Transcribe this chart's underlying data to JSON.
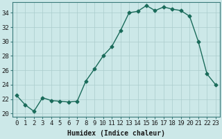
{
  "x": [
    0,
    1,
    2,
    3,
    4,
    5,
    6,
    7,
    8,
    9,
    10,
    11,
    12,
    13,
    14,
    15,
    16,
    17,
    18,
    19,
    20,
    21,
    22,
    23
  ],
  "y": [
    22.5,
    21.2,
    20.3,
    22.2,
    21.8,
    21.7,
    21.6,
    21.7,
    24.5,
    26.2,
    28.0,
    29.3,
    31.5,
    34.0,
    34.2,
    35.0,
    34.3,
    34.8,
    34.5,
    34.3,
    33.5,
    30.0,
    25.5,
    24.0
  ],
  "line_color": "#1a6b5a",
  "marker": "D",
  "marker_size": 2.5,
  "bg_color": "#cce8e8",
  "grid_color": "#aacccc",
  "xlabel": "Humidex (Indice chaleur)",
  "xlim": [
    -0.5,
    23.5
  ],
  "ylim": [
    19.5,
    35.5
  ],
  "yticks": [
    20,
    22,
    24,
    26,
    28,
    30,
    32,
    34
  ],
  "xticks": [
    0,
    1,
    2,
    3,
    4,
    5,
    6,
    7,
    8,
    9,
    10,
    11,
    12,
    13,
    14,
    15,
    16,
    17,
    18,
    19,
    20,
    21,
    22,
    23
  ],
  "xlabel_fontsize": 7,
  "tick_fontsize": 6.5,
  "line_width": 1.0
}
